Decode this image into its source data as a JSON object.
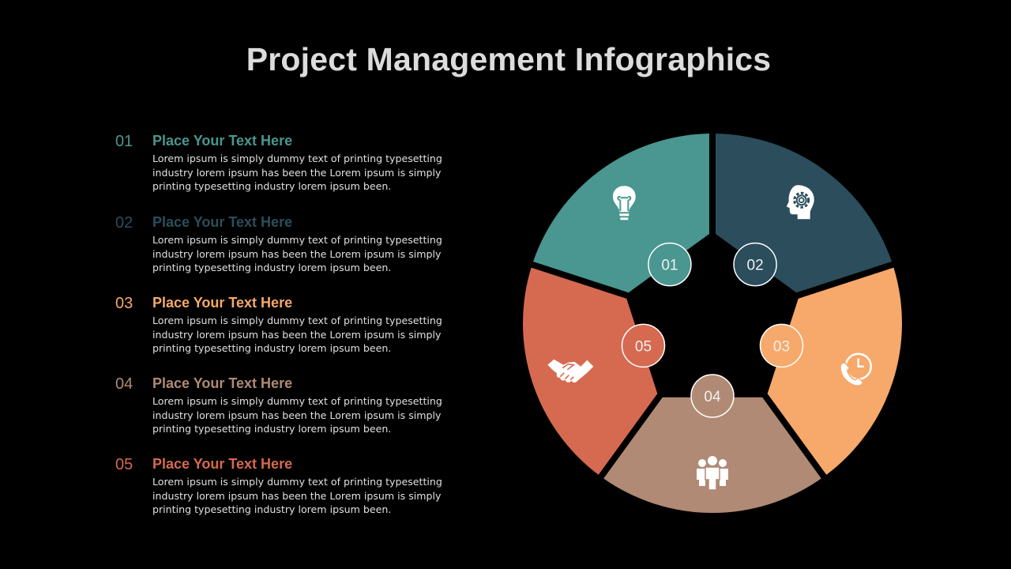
{
  "title": "Project Management Infographics",
  "colors": {
    "teal": "#4a9690",
    "navy": "#2b4d5c",
    "orange": "#f6a96a",
    "tan": "#b08a75",
    "terracotta": "#d56a50"
  },
  "items": [
    {
      "num": "01",
      "heading": "Place Your Text Here",
      "body": "Lorem ipsum is simply dummy text of printing typesetting industry lorem ipsum has been the Lorem ipsum is simply printing typesetting industry lorem ipsum been.",
      "color": "#4a9690"
    },
    {
      "num": "02",
      "heading": "Place Your Text Here",
      "body": "Lorem ipsum is simply dummy text of printing typesetting industry lorem ipsum has been the Lorem ipsum is simply printing typesetting industry lorem ipsum been.",
      "color": "#2b4d5c"
    },
    {
      "num": "03",
      "heading": "Place Your Text Here",
      "body": "Lorem ipsum is simply dummy text of printing typesetting industry lorem ipsum has been the Lorem ipsum is simply printing typesetting industry lorem ipsum been.",
      "color": "#f6a96a"
    },
    {
      "num": "04",
      "heading": "Place Your Text Here",
      "body": "Lorem ipsum is simply dummy text of printing typesetting industry lorem ipsum has been the Lorem ipsum is simply printing typesetting industry lorem ipsum been.",
      "color": "#b08a75"
    },
    {
      "num": "05",
      "heading": "Place Your Text Here",
      "body": "Lorem ipsum is simply dummy text of printing typesetting industry lorem ipsum has been the Lorem ipsum is simply printing typesetting industry lorem ipsum been.",
      "color": "#d56a50"
    }
  ],
  "wheel": {
    "segments": [
      {
        "label": "01",
        "icon": "lightbulb-icon",
        "color": "#4a9690"
      },
      {
        "label": "02",
        "icon": "head-gear-icon",
        "color": "#2b4d5c"
      },
      {
        "label": "03",
        "icon": "phone-clock-icon",
        "color": "#f6a96a"
      },
      {
        "label": "04",
        "icon": "team-icon",
        "color": "#b08a75"
      },
      {
        "label": "05",
        "icon": "handshake-icon",
        "color": "#d56a50"
      }
    ]
  }
}
